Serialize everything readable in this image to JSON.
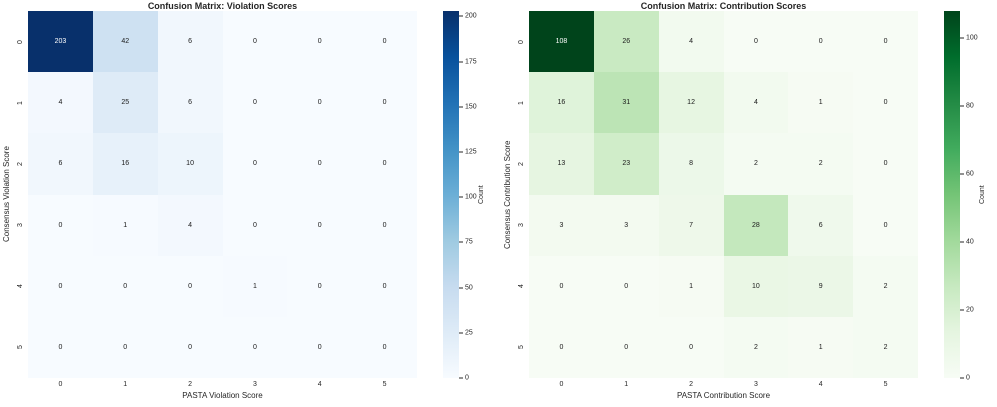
{
  "text_color": "#262626",
  "chart_data": [
    {
      "type": "heatmap",
      "title": "Confusion Matrix: Violation Scores",
      "xlabel": "PASTA Violation Score",
      "ylabel": "Consensus Violation Score",
      "x_ticks": [
        "0",
        "1",
        "2",
        "3",
        "4",
        "5"
      ],
      "y_ticks": [
        "0",
        "1",
        "2",
        "3",
        "4",
        "5"
      ],
      "values": [
        [
          203,
          42,
          6,
          0,
          0,
          0
        ],
        [
          4,
          25,
          6,
          0,
          0,
          0
        ],
        [
          6,
          16,
          10,
          0,
          0,
          0
        ],
        [
          0,
          1,
          4,
          0,
          0,
          0
        ],
        [
          0,
          0,
          0,
          1,
          0,
          0
        ],
        [
          0,
          0,
          0,
          0,
          0,
          0
        ]
      ],
      "vmin": 0,
      "vmax": 203,
      "colormap_name": "Blues",
      "colormap": [
        "#f7fbff",
        "#deebf7",
        "#c6dbef",
        "#9ecae1",
        "#6baed6",
        "#4292c6",
        "#2171b5",
        "#08519c",
        "#08306b"
      ],
      "colorbar_label": "Count",
      "colorbar_ticks": [
        0,
        25,
        50,
        75,
        100,
        125,
        150,
        175,
        200
      ],
      "annotation_light_color": "#ffffff",
      "annotation_dark_color": "#1a1a1a",
      "legend_position": "right-colorbar",
      "grid": false
    },
    {
      "type": "heatmap",
      "title": "Confusion Matrix: Contribution Scores",
      "xlabel": "PASTA Contribution Score",
      "ylabel": "Consensus Contribution Score",
      "x_ticks": [
        "0",
        "1",
        "2",
        "3",
        "4",
        "5"
      ],
      "y_ticks": [
        "0",
        "1",
        "2",
        "3",
        "4",
        "5"
      ],
      "values": [
        [
          108,
          26,
          4,
          0,
          0,
          0
        ],
        [
          16,
          31,
          12,
          4,
          1,
          0
        ],
        [
          13,
          23,
          8,
          2,
          2,
          0
        ],
        [
          3,
          3,
          7,
          28,
          6,
          0
        ],
        [
          0,
          0,
          1,
          10,
          9,
          2
        ],
        [
          0,
          0,
          0,
          2,
          1,
          2
        ]
      ],
      "vmin": 0,
      "vmax": 108,
      "colormap_name": "Greens",
      "colormap": [
        "#f7fcf5",
        "#e5f5e0",
        "#c7e9c0",
        "#a1d99b",
        "#74c476",
        "#41ab5d",
        "#238b45",
        "#006d2c",
        "#00441b"
      ],
      "colorbar_label": "Count",
      "colorbar_ticks": [
        0,
        20,
        40,
        60,
        80,
        100
      ],
      "annotation_light_color": "#ffffff",
      "annotation_dark_color": "#1a1a1a",
      "legend_position": "right-colorbar",
      "grid": false
    }
  ]
}
